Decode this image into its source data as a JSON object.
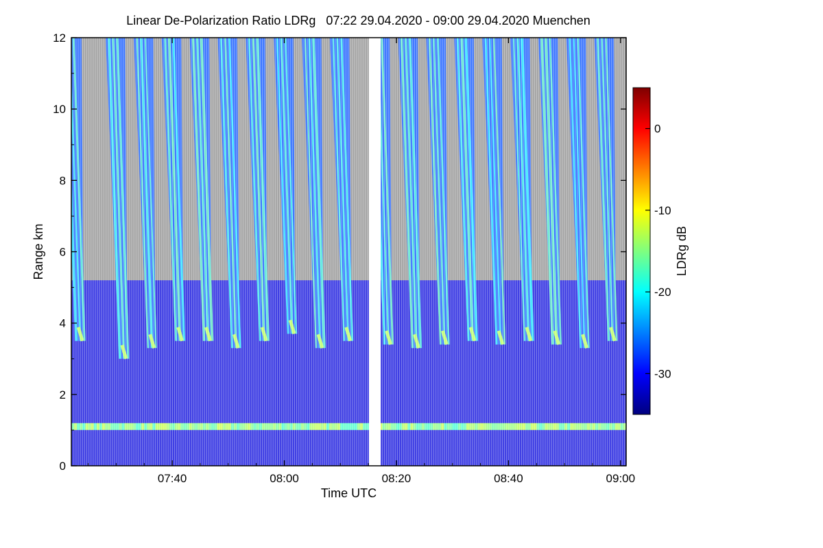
{
  "chart_data": {
    "type": "heatmap",
    "title": "Linear De-Polarization Ratio LDRg   07:22 29.04.2020 - 09:00 29.04.2020 Muenchen",
    "xlabel": "Time UTC",
    "ylabel": "Range km",
    "colorbar_label": "LDRg dB",
    "x_range_minutes_utc": [
      442,
      541
    ],
    "y_range_km": [
      0,
      12
    ],
    "x_ticks": [
      {
        "label": "07:40",
        "minute": 460
      },
      {
        "label": "08:00",
        "minute": 480
      },
      {
        "label": "08:20",
        "minute": 500
      },
      {
        "label": "08:40",
        "minute": 520
      },
      {
        "label": "09:00",
        "minute": 540
      }
    ],
    "y_ticks": [
      0,
      2,
      4,
      6,
      8,
      10,
      12
    ],
    "colorbar_range_db": [
      -35,
      5
    ],
    "colorbar_ticks": [
      0,
      -10,
      -20,
      -30
    ],
    "data_gap_minutes": [
      495.1,
      497.2
    ],
    "colormap": [
      "#00007f",
      "#0000ff",
      "#007fff",
      "#00ffff",
      "#7fff7f",
      "#ffff00",
      "#ff7f00",
      "#ff0000",
      "#7f0000"
    ],
    "no_signal_color": "#888888",
    "boundary_layer_top_km": 5.2,
    "melting_layer_km": 1.1,
    "fall_streaks": [
      {
        "minute": 443.0,
        "top_km": 12.0,
        "base_km": 3.5
      },
      {
        "minute": 450.8,
        "top_km": 12.0,
        "base_km": 3.0
      },
      {
        "minute": 455.8,
        "top_km": 12.0,
        "base_km": 3.3
      },
      {
        "minute": 460.8,
        "top_km": 12.0,
        "base_km": 3.5
      },
      {
        "minute": 465.8,
        "top_km": 12.0,
        "base_km": 3.5
      },
      {
        "minute": 470.8,
        "top_km": 12.0,
        "base_km": 3.3
      },
      {
        "minute": 475.8,
        "top_km": 12.0,
        "base_km": 3.5
      },
      {
        "minute": 480.8,
        "top_km": 12.0,
        "base_km": 3.7
      },
      {
        "minute": 485.8,
        "top_km": 12.0,
        "base_km": 3.3
      },
      {
        "minute": 490.8,
        "top_km": 12.0,
        "base_km": 3.5
      },
      {
        "minute": 498.0,
        "top_km": 12.0,
        "base_km": 3.4
      },
      {
        "minute": 503.0,
        "top_km": 12.0,
        "base_km": 3.3
      },
      {
        "minute": 508.0,
        "top_km": 12.0,
        "base_km": 3.4
      },
      {
        "minute": 513.0,
        "top_km": 12.0,
        "base_km": 3.5
      },
      {
        "minute": 518.0,
        "top_km": 12.0,
        "base_km": 3.4
      },
      {
        "minute": 523.0,
        "top_km": 12.0,
        "base_km": 3.5
      },
      {
        "minute": 528.0,
        "top_km": 12.0,
        "base_km": 3.4
      },
      {
        "minute": 533.0,
        "top_km": 12.0,
        "base_km": 3.3
      },
      {
        "minute": 538.0,
        "top_km": 12.0,
        "base_km": 3.5
      }
    ]
  }
}
